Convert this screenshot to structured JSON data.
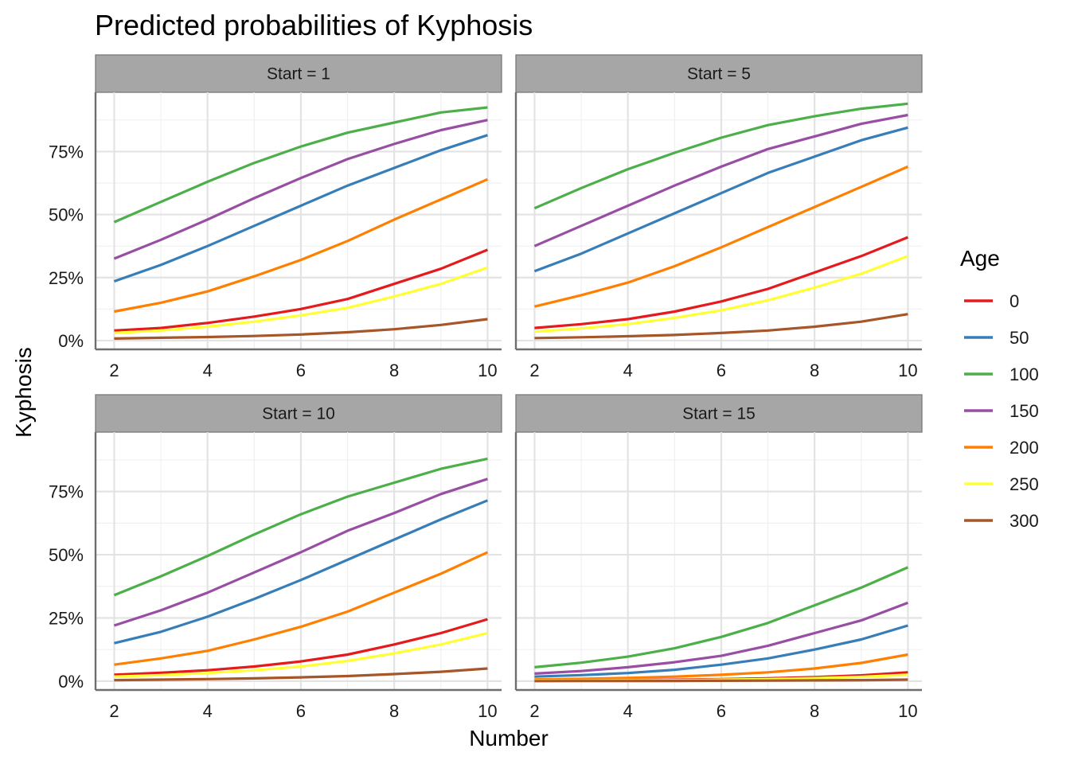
{
  "chart_data": {
    "type": "line",
    "title": "Predicted probabilities of Kyphosis",
    "xlabel": "Number",
    "ylabel": "Kyphosis",
    "xlim": [
      1.6,
      10.3
    ],
    "ylim": [
      -0.035,
      0.985
    ],
    "x_ticks": [
      2,
      4,
      6,
      8,
      10
    ],
    "x_tick_labels": [
      "2",
      "4",
      "6",
      "8",
      "10"
    ],
    "y_ticks": [
      0,
      0.25,
      0.5,
      0.75
    ],
    "y_tick_labels": [
      "0%",
      "25%",
      "50%",
      "75%"
    ],
    "grid": true,
    "legend": {
      "title": "Age",
      "placement": "right"
    },
    "x": [
      2,
      3,
      4,
      5,
      6,
      7,
      8,
      9,
      10
    ],
    "series_meta": [
      {
        "name": "0",
        "color": "#e41a1c"
      },
      {
        "name": "50",
        "color": "#377eb8"
      },
      {
        "name": "100",
        "color": "#4daf4a"
      },
      {
        "name": "150",
        "color": "#984ea3"
      },
      {
        "name": "200",
        "color": "#ff7f00"
      },
      {
        "name": "250",
        "color": "#ffff33"
      },
      {
        "name": "300",
        "color": "#a65628"
      }
    ],
    "facets": [
      {
        "label": "Start = 1",
        "series": [
          {
            "name": "0",
            "values": [
              0.04,
              0.05,
              0.07,
              0.095,
              0.125,
              0.165,
              0.225,
              0.285,
              0.36
            ]
          },
          {
            "name": "50",
            "values": [
              0.235,
              0.3,
              0.375,
              0.455,
              0.535,
              0.615,
              0.685,
              0.755,
              0.815
            ]
          },
          {
            "name": "100",
            "values": [
              0.47,
              0.55,
              0.63,
              0.705,
              0.77,
              0.825,
              0.865,
              0.905,
              0.925
            ]
          },
          {
            "name": "150",
            "values": [
              0.325,
              0.4,
              0.48,
              0.565,
              0.645,
              0.72,
              0.78,
              0.835,
              0.875
            ]
          },
          {
            "name": "200",
            "values": [
              0.115,
              0.15,
              0.195,
              0.255,
              0.32,
              0.395,
              0.48,
              0.56,
              0.64
            ]
          },
          {
            "name": "250",
            "values": [
              0.03,
              0.04,
              0.055,
              0.075,
              0.1,
              0.13,
              0.175,
              0.225,
              0.29
            ]
          },
          {
            "name": "300",
            "values": [
              0.008,
              0.011,
              0.014,
              0.018,
              0.024,
              0.033,
              0.045,
              0.062,
              0.085
            ]
          }
        ]
      },
      {
        "label": "Start = 5",
        "series": [
          {
            "name": "0",
            "values": [
              0.05,
              0.065,
              0.085,
              0.115,
              0.155,
              0.205,
              0.27,
              0.335,
              0.41
            ]
          },
          {
            "name": "50",
            "values": [
              0.275,
              0.345,
              0.425,
              0.505,
              0.585,
              0.665,
              0.73,
              0.795,
              0.845
            ]
          },
          {
            "name": "100",
            "values": [
              0.525,
              0.605,
              0.68,
              0.745,
              0.805,
              0.855,
              0.89,
              0.92,
              0.94
            ]
          },
          {
            "name": "150",
            "values": [
              0.375,
              0.455,
              0.535,
              0.615,
              0.69,
              0.76,
              0.81,
              0.86,
              0.895
            ]
          },
          {
            "name": "200",
            "values": [
              0.135,
              0.18,
              0.23,
              0.295,
              0.37,
              0.45,
              0.53,
              0.61,
              0.69
            ]
          },
          {
            "name": "250",
            "values": [
              0.035,
              0.048,
              0.065,
              0.09,
              0.12,
              0.16,
              0.21,
              0.265,
              0.335
            ]
          },
          {
            "name": "300",
            "values": [
              0.01,
              0.013,
              0.017,
              0.022,
              0.03,
              0.04,
              0.055,
              0.075,
              0.105
            ]
          }
        ]
      },
      {
        "label": "Start = 10",
        "series": [
          {
            "name": "0",
            "values": [
              0.025,
              0.033,
              0.043,
              0.058,
              0.078,
              0.105,
              0.145,
              0.19,
              0.245
            ]
          },
          {
            "name": "50",
            "values": [
              0.15,
              0.195,
              0.255,
              0.325,
              0.4,
              0.48,
              0.56,
              0.64,
              0.715
            ]
          },
          {
            "name": "100",
            "values": [
              0.34,
              0.415,
              0.495,
              0.58,
              0.66,
              0.73,
              0.785,
              0.84,
              0.88
            ]
          },
          {
            "name": "150",
            "values": [
              0.22,
              0.28,
              0.35,
              0.43,
              0.51,
              0.595,
              0.665,
              0.74,
              0.8
            ]
          },
          {
            "name": "200",
            "values": [
              0.065,
              0.09,
              0.12,
              0.165,
              0.215,
              0.275,
              0.35,
              0.425,
              0.51
            ]
          },
          {
            "name": "250",
            "values": [
              0.018,
              0.024,
              0.032,
              0.043,
              0.058,
              0.08,
              0.11,
              0.145,
              0.19
            ]
          },
          {
            "name": "300",
            "values": [
              0.004,
              0.006,
              0.008,
              0.011,
              0.015,
              0.02,
              0.028,
              0.037,
              0.05
            ]
          }
        ]
      },
      {
        "label": "Start = 15",
        "series": [
          {
            "name": "0",
            "values": [
              0.002,
              0.003,
              0.004,
              0.006,
              0.008,
              0.011,
              0.016,
              0.023,
              0.035
            ]
          },
          {
            "name": "50",
            "values": [
              0.018,
              0.024,
              0.032,
              0.045,
              0.065,
              0.09,
              0.125,
              0.165,
              0.22
            ]
          },
          {
            "name": "100",
            "values": [
              0.055,
              0.073,
              0.097,
              0.13,
              0.175,
              0.23,
              0.3,
              0.37,
              0.45
            ]
          },
          {
            "name": "150",
            "values": [
              0.03,
              0.04,
              0.055,
              0.075,
              0.1,
              0.14,
              0.19,
              0.24,
              0.31
            ]
          },
          {
            "name": "200",
            "values": [
              0.007,
              0.009,
              0.013,
              0.018,
              0.025,
              0.035,
              0.05,
              0.072,
              0.105
            ]
          },
          {
            "name": "250",
            "values": [
              0.002,
              0.002,
              0.003,
              0.004,
              0.006,
              0.008,
              0.012,
              0.017,
              0.025
            ]
          },
          {
            "name": "300",
            "values": [
              0.0004,
              0.0005,
              0.0007,
              0.001,
              0.0014,
              0.002,
              0.003,
              0.004,
              0.006
            ]
          }
        ]
      }
    ]
  }
}
